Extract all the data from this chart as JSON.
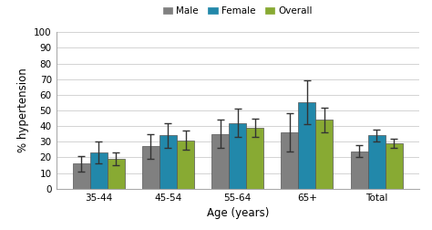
{
  "categories": [
    "35-44",
    "45-54",
    "55-64",
    "65+",
    "Total"
  ],
  "male_values": [
    16,
    27,
    35,
    36,
    24
  ],
  "female_values": [
    23,
    34,
    42,
    55,
    34
  ],
  "overall_values": [
    19,
    31,
    39,
    44,
    29
  ],
  "male_errors": [
    5,
    8,
    9,
    12,
    4
  ],
  "female_errors": [
    7,
    8,
    9,
    14,
    4
  ],
  "overall_errors": [
    4,
    6,
    6,
    8,
    3
  ],
  "male_color": "#808080",
  "female_color": "#2288aa",
  "overall_color": "#88aa33",
  "bar_width": 0.25,
  "xlabel": "Age (years)",
  "ylabel": "% hypertension",
  "ylim": [
    0,
    100
  ],
  "yticks": [
    0,
    10,
    20,
    30,
    40,
    50,
    60,
    70,
    80,
    90,
    100
  ],
  "legend_labels": [
    "Male",
    "Female",
    "Overall"
  ],
  "background_color": "#ffffff",
  "edge_color": "#555555",
  "figsize": [
    4.74,
    2.52
  ],
  "dpi": 100
}
